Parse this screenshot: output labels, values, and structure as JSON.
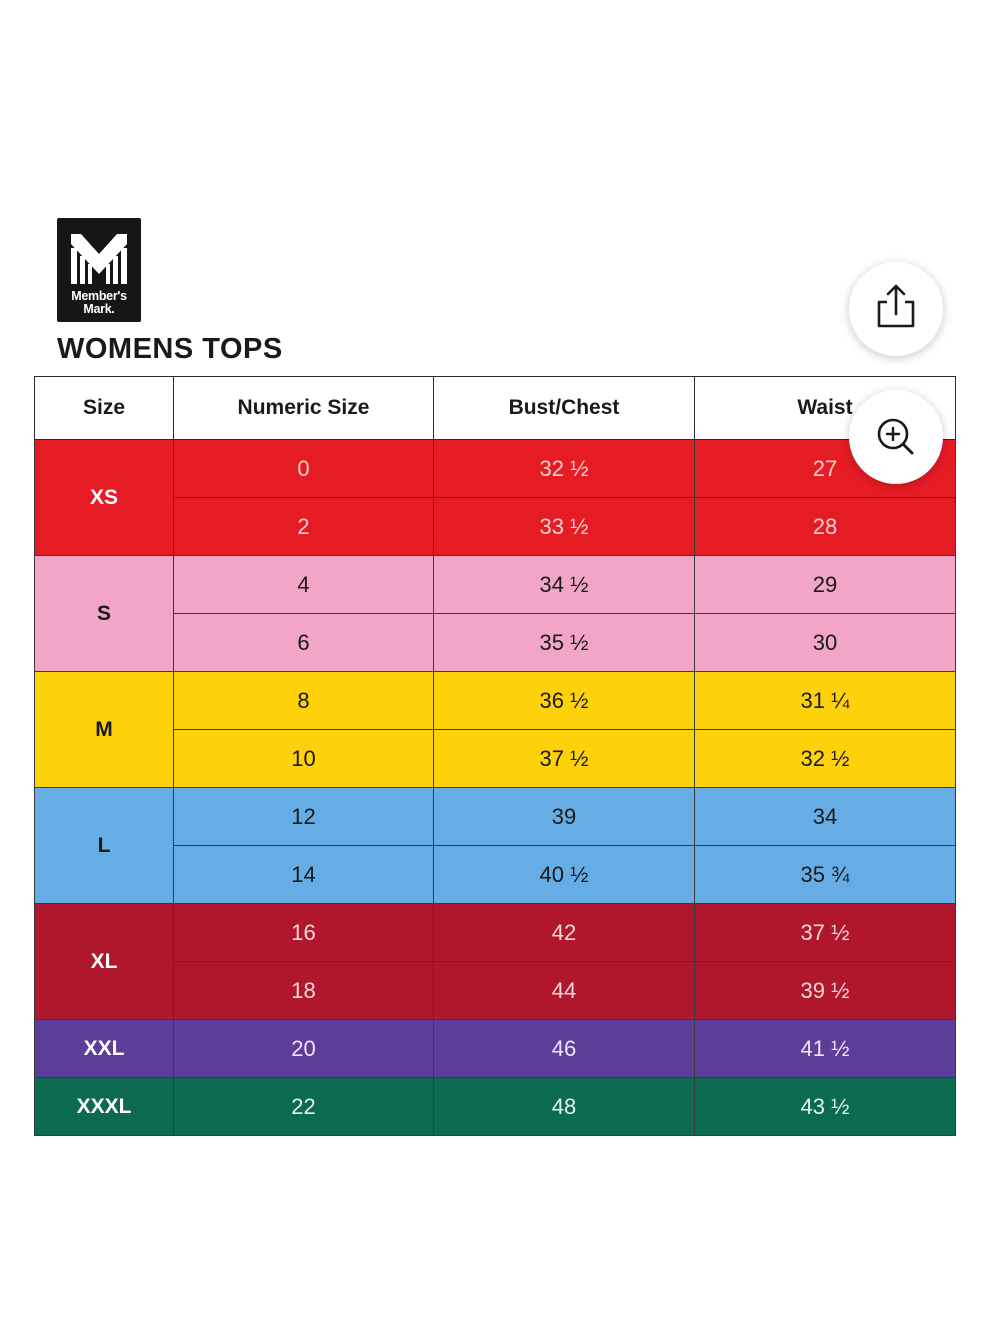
{
  "brand": {
    "logo_line1": "Member's",
    "logo_line2": "Mark."
  },
  "page_title": "WOMENS TOPS",
  "colors": {
    "xs": "#e61c25",
    "s": "#f3a5c7",
    "m": "#fdd20a",
    "l": "#65ade4",
    "xl": "#b0172c",
    "xxl": "#5c3d99",
    "xxxl": "#0c6b4f"
  },
  "table": {
    "headers": [
      "Size",
      "Numeric Size",
      "Bust/Chest",
      "Waist"
    ],
    "groups": [
      {
        "size": "XS",
        "bg": "#e61c25",
        "fg": "#ffffff",
        "sub_fg": "#fbd0d0",
        "rows": [
          {
            "numeric": "0",
            "bust": "32 ½",
            "waist": "27"
          },
          {
            "numeric": "2",
            "bust": "33 ½",
            "waist": "28"
          }
        ]
      },
      {
        "size": "S",
        "bg": "#f3a5c7",
        "fg": "#1a1a1a",
        "sub_fg": "#1a1a1a",
        "rows": [
          {
            "numeric": "4",
            "bust": "34 ½",
            "waist": "29"
          },
          {
            "numeric": "6",
            "bust": "35 ½",
            "waist": "30"
          }
        ]
      },
      {
        "size": "M",
        "bg": "#fdd20a",
        "fg": "#1a1a1a",
        "sub_fg": "#1a1a1a",
        "rows": [
          {
            "numeric": "8",
            "bust": "36 ½",
            "waist": "31 ¼"
          },
          {
            "numeric": "10",
            "bust": "37 ½",
            "waist": "32 ½"
          }
        ]
      },
      {
        "size": "L",
        "bg": "#65ade4",
        "fg": "#1a1a1a",
        "sub_fg": "#1a1a1a",
        "rows": [
          {
            "numeric": "12",
            "bust": "39",
            "waist": "34"
          },
          {
            "numeric": "14",
            "bust": "40 ½",
            "waist": "35 ¾"
          }
        ]
      },
      {
        "size": "XL",
        "bg": "#b0172c",
        "fg": "#ffffff",
        "sub_fg": "#f6dada",
        "rows": [
          {
            "numeric": "16",
            "bust": "42",
            "waist": "37 ½"
          },
          {
            "numeric": "18",
            "bust": "44",
            "waist": "39 ½"
          }
        ]
      },
      {
        "size": "XXL",
        "bg": "#5c3d99",
        "fg": "#ffffff",
        "sub_fg": "#ece6f6",
        "rows": [
          {
            "numeric": "20",
            "bust": "46",
            "waist": "41 ½"
          }
        ]
      },
      {
        "size": "XXXL",
        "bg": "#0c6b4f",
        "fg": "#ffffff",
        "sub_fg": "#e2f2ec",
        "rows": [
          {
            "numeric": "22",
            "bust": "48",
            "waist": "43 ½"
          }
        ]
      }
    ]
  },
  "icons": {
    "share": "share-icon",
    "zoom": "zoom-in-icon"
  }
}
